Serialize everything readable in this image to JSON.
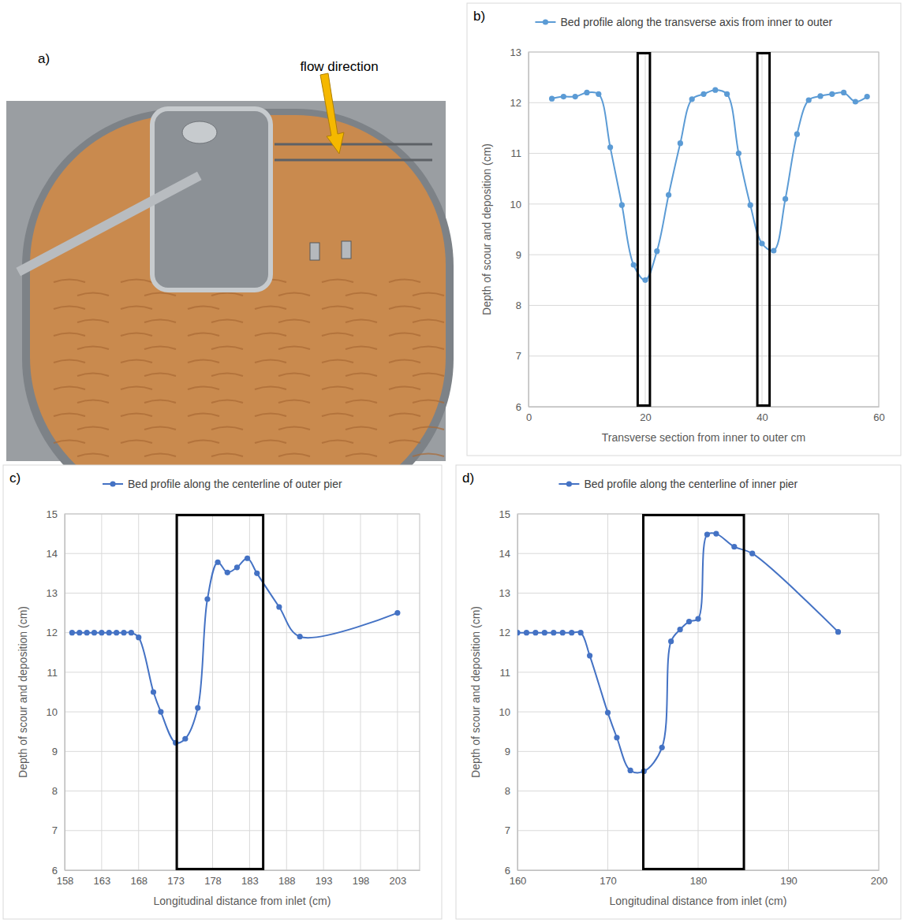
{
  "photo": {
    "panel": "a)",
    "annotation": "flow direction"
  },
  "chart_data": [
    {
      "type": "line",
      "panel": "b)",
      "x_label": "Transverse section from inner to outer cm",
      "y_label": "Depth of scour and deposition (cm)",
      "x": [
        4,
        6,
        8,
        10,
        12,
        14,
        16,
        18,
        20,
        22,
        24,
        26,
        28,
        30,
        32,
        34,
        36,
        38,
        40,
        42,
        44,
        46,
        48,
        50,
        52,
        54,
        56,
        58
      ],
      "series": [
        {
          "name": "Bed profile along the transverse axis from inner to outer",
          "color": "#5b9bd5",
          "marker": "circle",
          "line_style": "smooth",
          "values": [
            12.08,
            12.12,
            12.12,
            12.2,
            12.17,
            11.12,
            9.98,
            8.8,
            8.5,
            9.07,
            10.18,
            11.2,
            12.07,
            12.17,
            12.25,
            12.17,
            11.0,
            9.98,
            9.22,
            9.08,
            10.1,
            11.38,
            12.05,
            12.13,
            12.17,
            12.2,
            12.02,
            12.12
          ]
        }
      ],
      "piers": [
        {
          "x": [
            18.5,
            21
          ],
          "y": [
            6,
            13
          ]
        },
        {
          "x": [
            39,
            41.5
          ],
          "y": [
            6,
            13
          ]
        }
      ],
      "xlim": [
        0,
        60
      ],
      "xticks": [
        0,
        20,
        40,
        60
      ],
      "ylim": [
        6,
        13
      ],
      "yticks": [
        6,
        7,
        8,
        9,
        10,
        11,
        12,
        13
      ],
      "grid": true,
      "legend": "top"
    },
    {
      "type": "line",
      "panel": "c)",
      "x_label": "Longitudinal distance from inlet (cm)",
      "y_label": "Depth of scour and deposition (cm)",
      "x": [
        159,
        160,
        161,
        162,
        163,
        164,
        165,
        166,
        167,
        168,
        170,
        171,
        173,
        174.3,
        176,
        177.3,
        178.7,
        180,
        181.3,
        182.7,
        184,
        187,
        189.8,
        203
      ],
      "series": [
        {
          "name": "Bed profile along the centerline of outer pier",
          "color": "#4472c4",
          "marker": "circle",
          "line_style": "smooth",
          "values": [
            12,
            12,
            12,
            12,
            12,
            12,
            12,
            12,
            12,
            11.88,
            10.5,
            10.0,
            9.22,
            9.32,
            10.1,
            12.85,
            13.78,
            13.52,
            13.65,
            13.88,
            13.5,
            12.65,
            11.9,
            12.5
          ]
        }
      ],
      "piers": [
        {
          "x": [
            173,
            185
          ],
          "y": [
            6,
            15
          ]
        }
      ],
      "xlim": [
        158,
        206
      ],
      "xticks": [
        158,
        163,
        168,
        173,
        178,
        183,
        188,
        193,
        198,
        203
      ],
      "ylim": [
        6,
        15
      ],
      "yticks": [
        6,
        7,
        8,
        9,
        10,
        11,
        12,
        13,
        14,
        15
      ],
      "grid": true,
      "legend": "top"
    },
    {
      "type": "line",
      "panel": "d)",
      "x_label": "Longitudinal distance from inlet (cm)",
      "y_label": "Depth of scour and deposition (cm)",
      "x": [
        160,
        161,
        162,
        163,
        164,
        165,
        166,
        167,
        168,
        170,
        171,
        172.5,
        174,
        176,
        177,
        178,
        179,
        180,
        181,
        182,
        184,
        186,
        195.5
      ],
      "series": [
        {
          "name": "Bed profile along the centerline of inner pier",
          "color": "#4472c4",
          "marker": "circle",
          "line_style": "smooth",
          "values": [
            12,
            12,
            12,
            12,
            12,
            12,
            12,
            12,
            11.42,
            9.98,
            9.35,
            8.52,
            8.5,
            9.1,
            11.78,
            12.08,
            12.28,
            12.35,
            14.48,
            14.5,
            14.17,
            14.0,
            12.02
          ]
        }
      ],
      "piers": [
        {
          "x": [
            173.8,
            185.2
          ],
          "y": [
            6,
            15
          ]
        }
      ],
      "xlim": [
        160,
        200
      ],
      "xticks": [
        160,
        170,
        180,
        190,
        200
      ],
      "ylim": [
        6,
        15
      ],
      "yticks": [
        6,
        7,
        8,
        9,
        10,
        11,
        12,
        13,
        14,
        15
      ],
      "grid": true,
      "legend": "top"
    }
  ]
}
